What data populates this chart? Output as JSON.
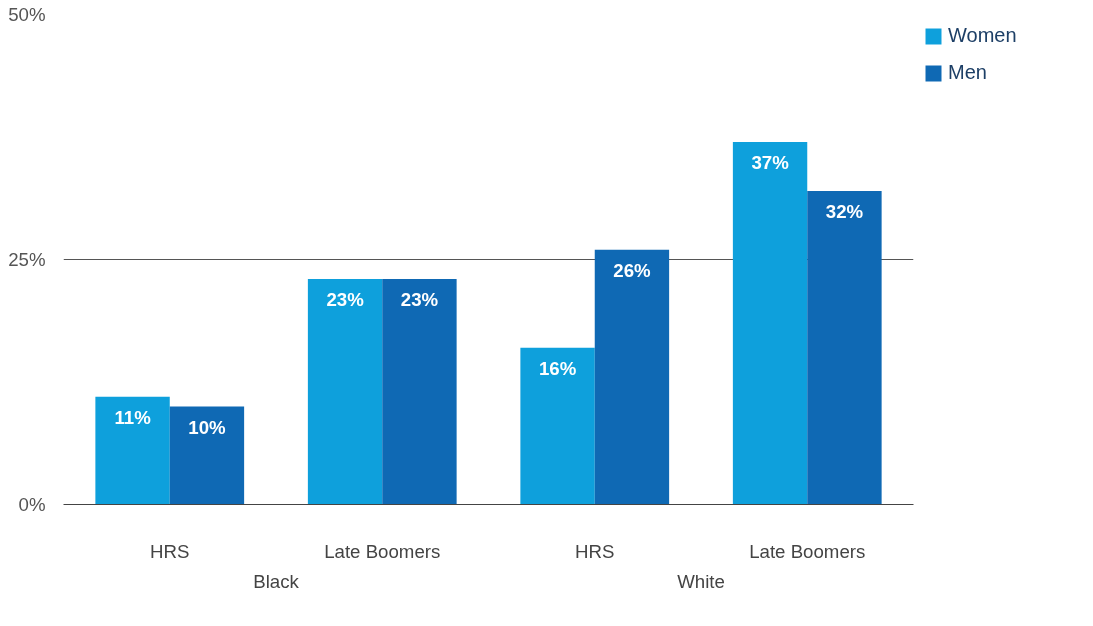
{
  "chart_data": {
    "type": "bar",
    "categories": [
      "HRS",
      "Late Boomers",
      "HRS",
      "Late Boomers"
    ],
    "series": [
      {
        "name": "Women",
        "color": "#0ea0dc",
        "values": [
          11,
          23,
          16,
          37
        ],
        "value_labels": [
          "11%",
          "23%",
          "16%",
          "37%"
        ]
      },
      {
        "name": "Men",
        "color": "#0f69b4",
        "values": [
          10,
          23,
          26,
          32
        ],
        "value_labels": [
          "10%",
          "23%",
          "26%",
          "32%"
        ]
      }
    ],
    "annotations": [
      "Black",
      "White"
    ],
    "ylim": [
      0,
      50
    ],
    "yticks": [
      {
        "value": 0,
        "label": "0%"
      },
      {
        "value": 25,
        "label": "25%"
      },
      {
        "value": 50,
        "label": "50%"
      }
    ],
    "grid": "y",
    "legend": "top right"
  }
}
